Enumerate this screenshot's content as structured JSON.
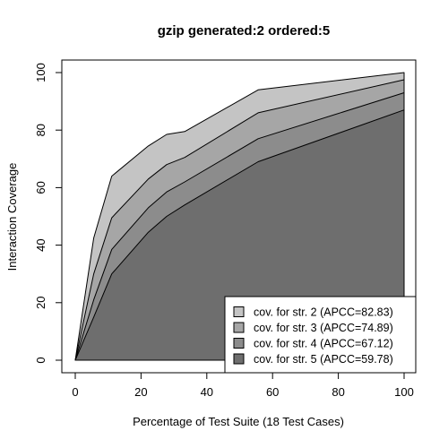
{
  "chart_data": {
    "type": "area",
    "title": "gzip generated:2 ordered:5",
    "xlabel": "Percentage of Test Suite (18 Test Cases)",
    "ylabel": "Interaction Coverage",
    "xlim": [
      0,
      100
    ],
    "ylim": [
      0,
      100
    ],
    "x_ticks": [
      0,
      20,
      40,
      60,
      80,
      100
    ],
    "y_ticks": [
      0,
      20,
      40,
      60,
      80,
      100
    ],
    "grid": false,
    "legend_position": "bottom-right",
    "series": [
      {
        "name": "cov. for str. 2 (APCC=82.83)",
        "color": "#c4c4c4",
        "points": [
          [
            0,
            0
          ],
          [
            5.6,
            42.5
          ],
          [
            11.1,
            64
          ],
          [
            22.2,
            74.5
          ],
          [
            27.8,
            78.5
          ],
          [
            33.3,
            79.5
          ],
          [
            55.6,
            94
          ],
          [
            100,
            100
          ]
        ]
      },
      {
        "name": "cov. for str. 3 (APCC=74.89)",
        "color": "#a6a6a6",
        "points": [
          [
            0,
            0
          ],
          [
            5.6,
            30
          ],
          [
            11.1,
            49.5
          ],
          [
            22.2,
            63
          ],
          [
            27.8,
            68
          ],
          [
            33.3,
            70.5
          ],
          [
            55.6,
            86
          ],
          [
            100,
            97.5
          ]
        ]
      },
      {
        "name": "cov. for str. 4 (APCC=67.12)",
        "color": "#8c8c8c",
        "points": [
          [
            0,
            0
          ],
          [
            5.6,
            21
          ],
          [
            11.1,
            38.5
          ],
          [
            22.2,
            53
          ],
          [
            27.8,
            58.5
          ],
          [
            33.3,
            62
          ],
          [
            55.6,
            77
          ],
          [
            100,
            93
          ]
        ]
      },
      {
        "name": "cov. for str. 5 (APCC=59.78)",
        "color": "#6e6e6e",
        "points": [
          [
            0,
            0
          ],
          [
            5.6,
            15
          ],
          [
            11.1,
            30
          ],
          [
            22.2,
            44.5
          ],
          [
            27.8,
            50
          ],
          [
            33.3,
            54
          ],
          [
            55.6,
            69
          ],
          [
            100,
            87
          ]
        ]
      }
    ]
  }
}
